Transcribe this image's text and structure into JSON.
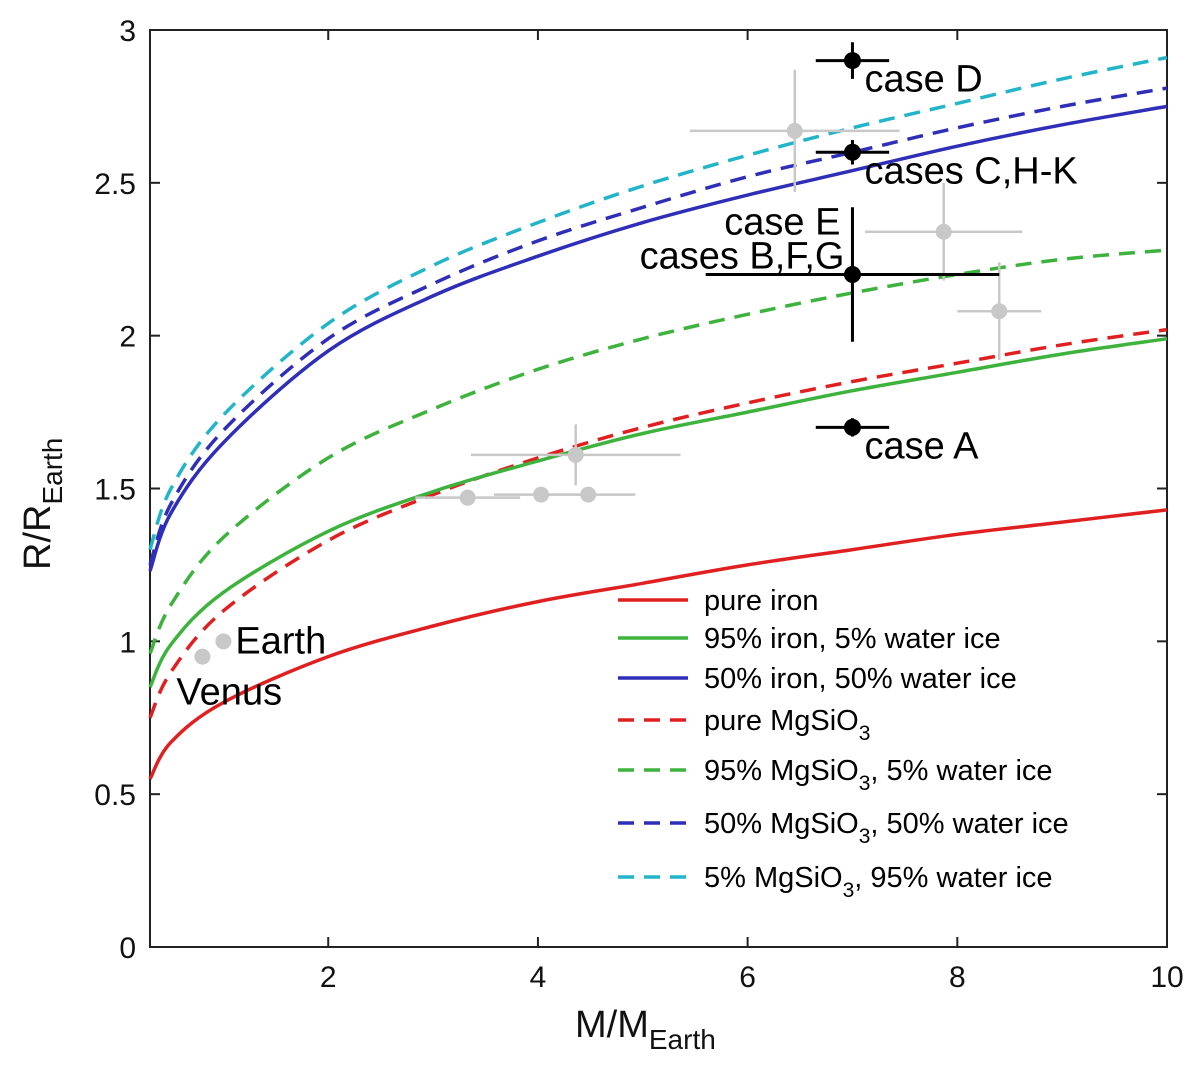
{
  "chart_data": {
    "type": "line",
    "xlabel": "M/M",
    "xlabel_sub": "Earth",
    "ylabel": "R/R",
    "ylabel_sub": "Earth",
    "xlim": [
      0.3,
      10
    ],
    "ylim": [
      0,
      3
    ],
    "x_ticks": [
      2,
      4,
      6,
      8,
      10
    ],
    "y_ticks": [
      0,
      0.5,
      1,
      1.5,
      2,
      2.5,
      3
    ],
    "x_tick_labels": [
      "2",
      "4",
      "6",
      "8",
      "10"
    ],
    "y_tick_labels": [
      "0",
      "0.5",
      "1",
      "1.5",
      "2",
      "2.5",
      "3"
    ],
    "legend_position": "bottom-right",
    "series": [
      {
        "name": "pure iron",
        "color": "#e02020",
        "dash": false,
        "legend": "pure iron",
        "points": [
          [
            0.3,
            0.55
          ],
          [
            0.5,
            0.67
          ],
          [
            1,
            0.8
          ],
          [
            2,
            0.95
          ],
          [
            3,
            1.05
          ],
          [
            4,
            1.13
          ],
          [
            5,
            1.19
          ],
          [
            6,
            1.25
          ],
          [
            7,
            1.3
          ],
          [
            8,
            1.35
          ],
          [
            9,
            1.39
          ],
          [
            10,
            1.43
          ]
        ]
      },
      {
        "name": "95% iron, 5% water ice",
        "color": "#3db33d",
        "dash": false,
        "legend": "95% iron, 5% water ice",
        "points": [
          [
            0.3,
            0.85
          ],
          [
            0.5,
            0.99
          ],
          [
            1,
            1.16
          ],
          [
            2,
            1.36
          ],
          [
            3,
            1.49
          ],
          [
            4,
            1.59
          ],
          [
            5,
            1.68
          ],
          [
            6,
            1.75
          ],
          [
            7,
            1.82
          ],
          [
            8,
            1.88
          ],
          [
            9,
            1.94
          ],
          [
            10,
            1.99
          ]
        ]
      },
      {
        "name": "50% iron, 50% water ice",
        "color": "#2e2eb8",
        "dash": false,
        "legend": "50% iron, 50% water ice",
        "points": [
          [
            0.3,
            1.23
          ],
          [
            0.5,
            1.42
          ],
          [
            1,
            1.65
          ],
          [
            2,
            1.95
          ],
          [
            3,
            2.13
          ],
          [
            4,
            2.26
          ],
          [
            5,
            2.37
          ],
          [
            6,
            2.46
          ],
          [
            7,
            2.54
          ],
          [
            8,
            2.62
          ],
          [
            9,
            2.69
          ],
          [
            10,
            2.75
          ]
        ]
      },
      {
        "name": "pure MgSiO3",
        "color": "#e02020",
        "dash": true,
        "legend_main": "pure MgSiO",
        "legend_sub": "3",
        "legend_rest": "",
        "points": [
          [
            0.3,
            0.75
          ],
          [
            0.5,
            0.9
          ],
          [
            1,
            1.1
          ],
          [
            2,
            1.33
          ],
          [
            3,
            1.48
          ],
          [
            4,
            1.6
          ],
          [
            5,
            1.7
          ],
          [
            6,
            1.78
          ],
          [
            7,
            1.85
          ],
          [
            8,
            1.91
          ],
          [
            9,
            1.97
          ],
          [
            10,
            2.02
          ]
        ]
      },
      {
        "name": "95% MgSiO3, 5% water ice",
        "color": "#3db33d",
        "dash": true,
        "legend_main": "95% MgSiO",
        "legend_sub": "3",
        "legend_rest": ", 5% water ice",
        "points": [
          [
            0.3,
            0.96
          ],
          [
            0.5,
            1.12
          ],
          [
            1,
            1.34
          ],
          [
            2,
            1.6
          ],
          [
            3,
            1.76
          ],
          [
            4,
            1.89
          ],
          [
            5,
            1.99
          ],
          [
            6,
            2.07
          ],
          [
            7,
            2.14
          ],
          [
            8,
            2.2
          ],
          [
            9,
            2.25
          ],
          [
            10,
            2.28
          ]
        ]
      },
      {
        "name": "50% MgSiO3, 50% water ice",
        "color": "#2e2eb8",
        "dash": true,
        "legend_main": "50% MgSiO",
        "legend_sub": "3",
        "legend_rest": ", 50% water ice",
        "points": [
          [
            0.3,
            1.25
          ],
          [
            0.5,
            1.45
          ],
          [
            1,
            1.69
          ],
          [
            2,
            1.99
          ],
          [
            3,
            2.17
          ],
          [
            4,
            2.31
          ],
          [
            5,
            2.42
          ],
          [
            6,
            2.52
          ],
          [
            7,
            2.6
          ],
          [
            8,
            2.68
          ],
          [
            9,
            2.75
          ],
          [
            10,
            2.81
          ]
        ]
      },
      {
        "name": "5% MgSiO3, 95% water ice",
        "color": "#22b5c9",
        "dash": true,
        "legend_main": "5% MgSiO",
        "legend_sub": "3",
        "legend_rest": ", 95% water ice",
        "points": [
          [
            0.3,
            1.3
          ],
          [
            0.5,
            1.5
          ],
          [
            1,
            1.74
          ],
          [
            2,
            2.04
          ],
          [
            3,
            2.23
          ],
          [
            4,
            2.37
          ],
          [
            5,
            2.49
          ],
          [
            6,
            2.59
          ],
          [
            7,
            2.68
          ],
          [
            8,
            2.76
          ],
          [
            9,
            2.84
          ],
          [
            10,
            2.91
          ]
        ]
      }
    ],
    "gray_points": [
      {
        "x": 0.8,
        "y": 0.95,
        "xerr": 0,
        "yerr": 0,
        "label": "Venus"
      },
      {
        "x": 1.0,
        "y": 1.0,
        "xerr": 0,
        "yerr": 0,
        "label": "Earth"
      },
      {
        "x": 3.33,
        "y": 1.47,
        "xerr": 0.5,
        "yerr": 0
      },
      {
        "x": 4.03,
        "y": 1.48,
        "xerr": 0.45,
        "yerr": 0
      },
      {
        "x": 4.48,
        "y": 1.48,
        "xerr": 0.45,
        "yerr": 0
      },
      {
        "x": 4.36,
        "y": 1.61,
        "xerr": 1.0,
        "yerr": 0.1
      },
      {
        "x": 6.45,
        "y": 2.67,
        "xerr": 1.0,
        "yerr": 0.2
      },
      {
        "x": 7.87,
        "y": 2.34,
        "xerr": 0.75,
        "yerr": 0.16
      },
      {
        "x": 8.4,
        "y": 2.08,
        "xerr": 0.4,
        "yerr": 0.16
      }
    ],
    "cases": [
      {
        "x": 7.0,
        "y": 2.9,
        "xerr": 0.35,
        "yerr": 0.06,
        "label": "case D"
      },
      {
        "x": 7.0,
        "y": 2.6,
        "xerr": 0.35,
        "yerr": 0.04,
        "label": "cases C,H-K"
      },
      {
        "x": 7.0,
        "y": 2.2,
        "xerr": 1.4,
        "yerr": 0.22,
        "label": "case E",
        "label2": "cases B,F,G"
      },
      {
        "x": 7.0,
        "y": 1.7,
        "xerr": 0.35,
        "yerr": 0.03,
        "label": "case A"
      }
    ]
  }
}
